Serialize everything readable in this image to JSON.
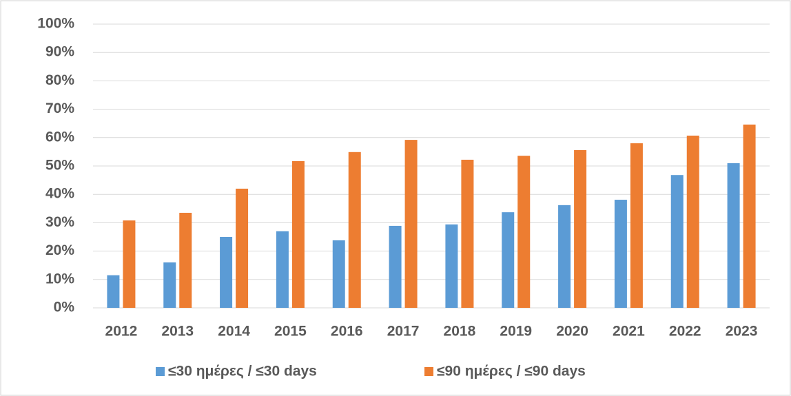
{
  "chart_data": {
    "type": "bar",
    "categories": [
      "2012",
      "2013",
      "2014",
      "2015",
      "2016",
      "2017",
      "2018",
      "2019",
      "2020",
      "2021",
      "2022",
      "2023"
    ],
    "series": [
      {
        "name": "≤30 ημέρες / ≤30 days",
        "color": "#5b9bd5",
        "values": [
          11.5,
          16,
          25,
          27,
          23.8,
          28.9,
          29.4,
          33.7,
          36.2,
          38.1,
          46.8,
          51
        ]
      },
      {
        "name": "≤90 ημέρες / ≤90 days",
        "color": "#ed7d31",
        "values": [
          30.8,
          33.5,
          42,
          51.7,
          54.9,
          59.2,
          52.2,
          53.6,
          55.6,
          58,
          60.7,
          64.6
        ]
      }
    ],
    "ylim": [
      0,
      100
    ],
    "yticks": [
      {
        "value": 0,
        "label": "0%"
      },
      {
        "value": 10,
        "label": "10%"
      },
      {
        "value": 20,
        "label": "20%"
      },
      {
        "value": 30,
        "label": "30%"
      },
      {
        "value": 40,
        "label": "40%"
      },
      {
        "value": 50,
        "label": "50%"
      },
      {
        "value": 60,
        "label": "60%"
      },
      {
        "value": 70,
        "label": "70%"
      },
      {
        "value": 80,
        "label": "80%"
      },
      {
        "value": 90,
        "label": "90%"
      },
      {
        "value": 100,
        "label": "100%"
      }
    ],
    "grid": true,
    "legend": "bottom"
  }
}
